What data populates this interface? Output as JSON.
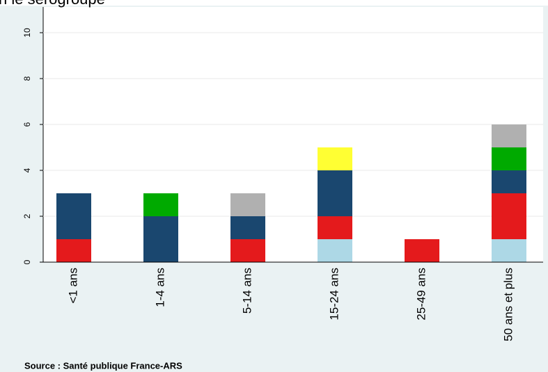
{
  "chart_data": {
    "type": "stacked-bar",
    "title": "n le sérogroupe",
    "source": "Source : Santé publique France-ARS",
    "categories": [
      "<1 ans",
      "1-4 ans",
      "5-14 ans",
      "15-24 ans",
      "25-49 ans",
      "50 ans et plus"
    ],
    "series": [
      {
        "color": "#add8e6",
        "values": [
          0,
          0,
          0,
          1,
          0,
          1
        ]
      },
      {
        "color": "#e41a1c",
        "values": [
          1,
          0,
          1,
          1,
          1,
          2
        ]
      },
      {
        "color": "#1a476f",
        "values": [
          2,
          2,
          1,
          2,
          0,
          1
        ]
      },
      {
        "color": "#00aa00",
        "values": [
          0,
          1,
          0,
          0,
          0,
          1
        ]
      },
      {
        "color": "#ffff33",
        "values": [
          0,
          0,
          0,
          1,
          0,
          0
        ]
      },
      {
        "color": "#b0b0b0",
        "values": [
          0,
          0,
          1,
          0,
          0,
          1
        ]
      }
    ],
    "ylim": [
      0,
      10
    ],
    "yticks": [
      0,
      2,
      4,
      6,
      8,
      10
    ],
    "grid": true
  }
}
